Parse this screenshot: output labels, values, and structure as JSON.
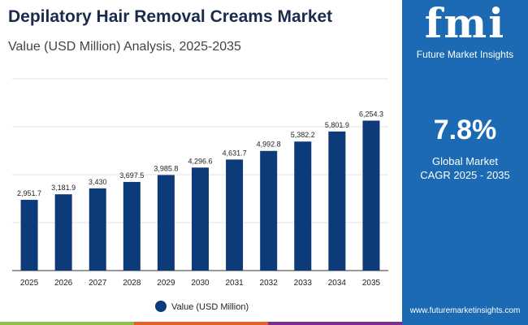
{
  "header": {
    "title": "Depilatory Hair Removal Creams Market",
    "subtitle": "Value (USD Million) Analysis, 2025-2035"
  },
  "panel": {
    "logo": "fmi",
    "logo_text": "Future Market Insights",
    "cagr_value": "7.8%",
    "cagr_label1": "Global Market",
    "cagr_label2": "CAGR 2025 - 2035",
    "url": "www.futuremarketinsights.com"
  },
  "colors": {
    "bar": "#0d3b7a",
    "panel": "#1b6ab3",
    "stripes": [
      "#8cc04b",
      "#e2632a",
      "#7b2d8b"
    ]
  },
  "chart_data": {
    "type": "bar",
    "categories": [
      "2025",
      "2026",
      "2027",
      "2028",
      "2029",
      "2030",
      "2031",
      "2032",
      "2033",
      "2034",
      "2035"
    ],
    "series": [
      {
        "name": "Value (USD Million)",
        "values": [
          2951.7,
          3181.9,
          3430,
          3697.5,
          3985.8,
          4296.6,
          4631.7,
          4992.8,
          5382.2,
          5801.9,
          6254.3
        ]
      }
    ],
    "labels": [
      "2,951.7",
      "3,181.9",
      "3,430",
      "3,697.5",
      "3,985.8",
      "4,296.6",
      "4,631.7",
      "4,992.8",
      "5,382.2",
      "5,801.9",
      "6,254.3"
    ],
    "ylim": [
      0,
      8000
    ],
    "grid": true,
    "legend": "bottom",
    "y_ticks_shown": false
  }
}
